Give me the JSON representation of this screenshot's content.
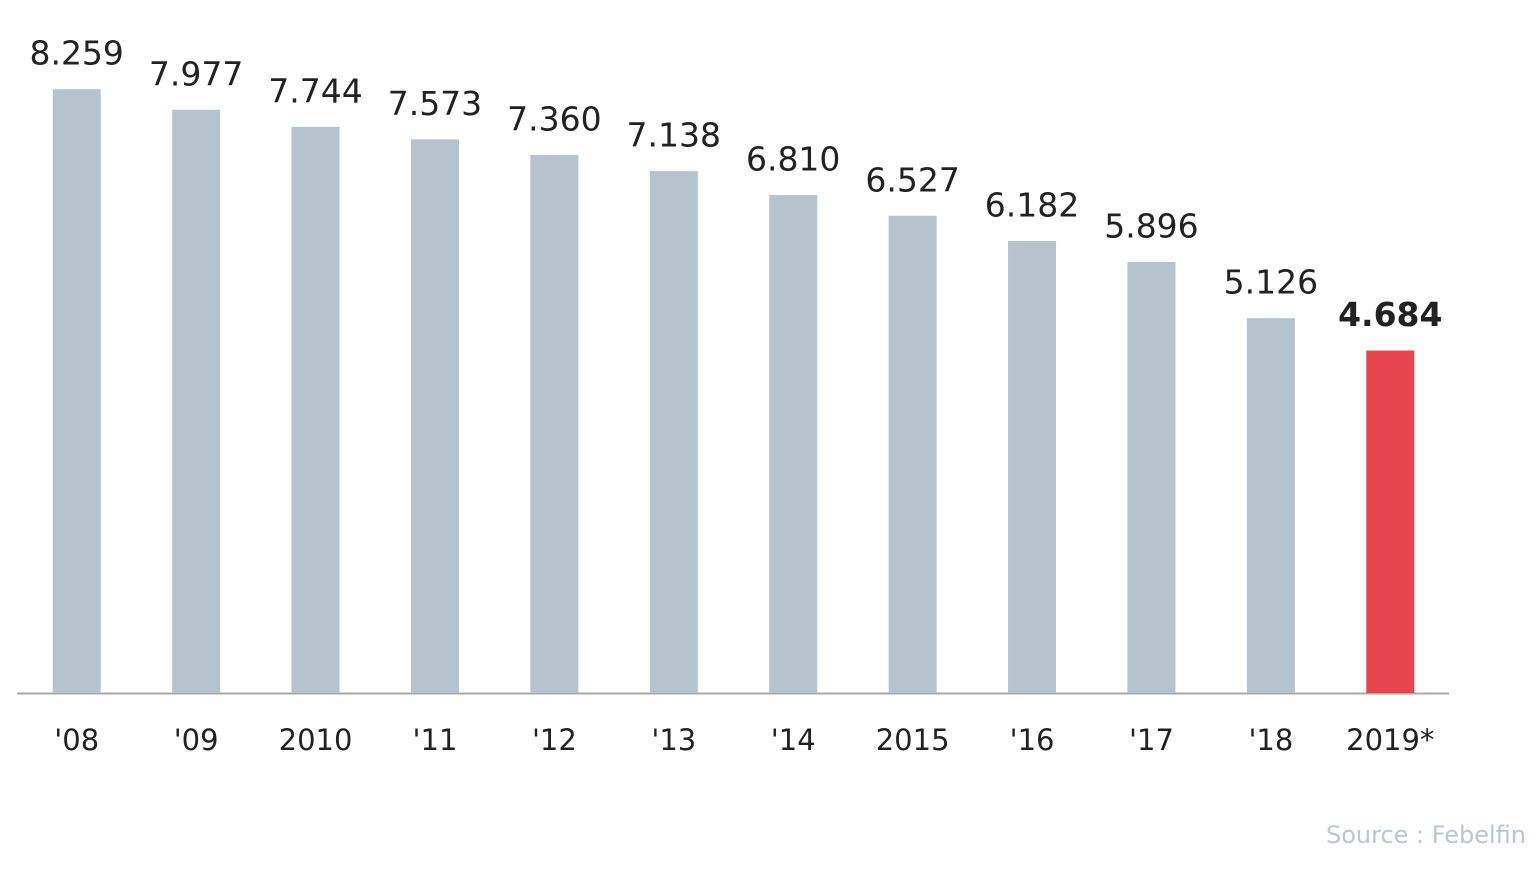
{
  "chart_data": {
    "type": "bar",
    "categories": [
      "'08",
      "'09",
      "2010",
      "'11",
      "'12",
      "'13",
      "'14",
      "2015",
      "'16",
      "'17",
      "'18",
      "2019*"
    ],
    "values": [
      8259,
      7977,
      7744,
      7573,
      7360,
      7138,
      6810,
      6527,
      6182,
      5896,
      5126,
      4684
    ],
    "value_labels": [
      "8.259",
      "7.977",
      "7.744",
      "7.573",
      "7.360",
      "7.138",
      "6.810",
      "6.527",
      "6.182",
      "5.896",
      "5.126",
      "4.684"
    ],
    "color": "#b5c3cf",
    "highlight": {
      "index": 11,
      "color": "#e8464f"
    },
    "ylim": [
      0,
      9000
    ],
    "source": "Source : Febelfin"
  }
}
